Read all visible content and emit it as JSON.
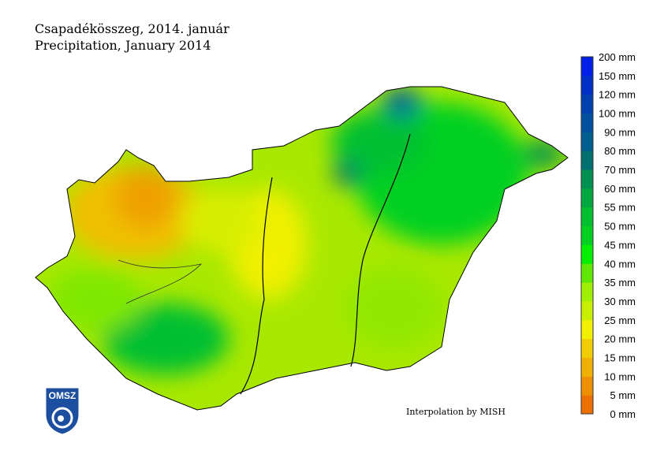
{
  "title_hu": "Csapadékösszeg, 2014. január",
  "title_en": "Precipitation, January 2014",
  "credit": "Interpolation by MISH",
  "logo": "OMSZ",
  "legend": {
    "unit": "mm",
    "labels": [
      "0 mm",
      "5 mm",
      "10 mm",
      "15 mm",
      "20 mm",
      "25 mm",
      "30 mm",
      "35 mm",
      "40 mm",
      "45 mm",
      "50 mm",
      "55 mm",
      "60 mm",
      "70 mm",
      "80 mm",
      "90 mm",
      "100 mm",
      "120 mm",
      "150 mm",
      "200 mm"
    ],
    "colors": [
      "#ee7000",
      "#ef9000",
      "#f0b000",
      "#f0cc00",
      "#f0f000",
      "#c8ee00",
      "#a0ee00",
      "#60e800",
      "#00ee00",
      "#00d020",
      "#00c030",
      "#00a840",
      "#009050",
      "#007070",
      "#005f90",
      "#0050a0",
      "#0040b0",
      "#0030c8",
      "#0020e8"
    ]
  }
}
